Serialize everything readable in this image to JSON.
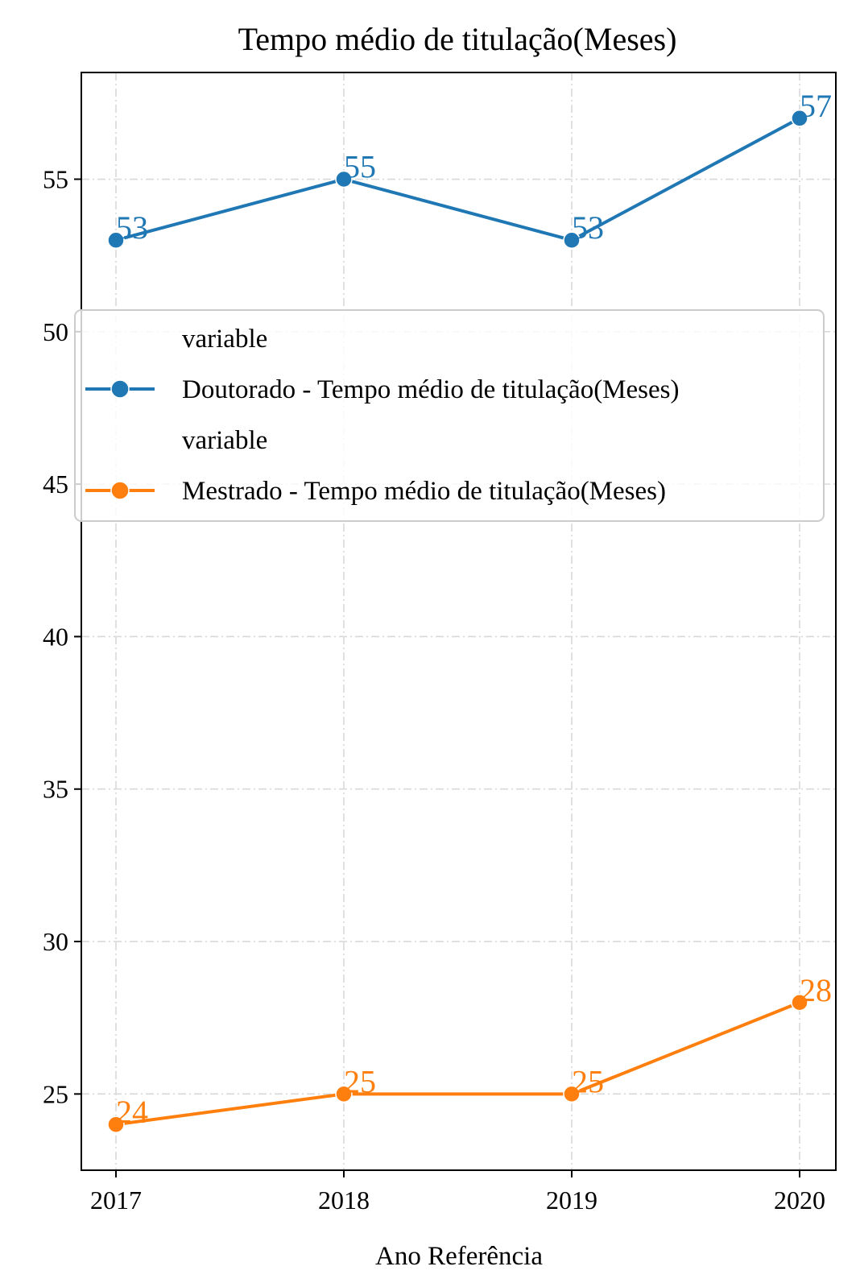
{
  "chart_data": {
    "type": "line",
    "title": "Tempo médio de titulação(Meses)",
    "xlabel": "Ano Referência",
    "ylabel": "",
    "x": [
      "2017",
      "2018",
      "2019",
      "2020"
    ],
    "ylim": [
      22.5,
      58.5
    ],
    "yticks": [
      25,
      30,
      35,
      40,
      45,
      50,
      55
    ],
    "grid": true,
    "legend_position": "center-top",
    "series": [
      {
        "name": "Doutorado - Tempo médio de titulação(Meses)",
        "legend_header": "variable",
        "color": "#1f77b4",
        "values": [
          53,
          55,
          53,
          57
        ]
      },
      {
        "name": "Mestrado - Tempo médio de titulação(Meses)",
        "legend_header": "variable",
        "color": "#ff7f0e",
        "values": [
          24,
          25,
          25,
          28
        ]
      }
    ]
  }
}
